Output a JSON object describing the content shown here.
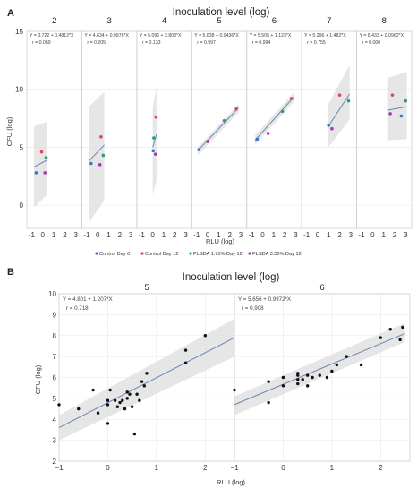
{
  "panelA": {
    "letter": "A",
    "title": "Inoculation level (log)",
    "xlabel": "RLU (log)",
    "ylabel": "CFU (log)"
  },
  "panelB": {
    "letter": "B",
    "title": "Inoculation level (log)",
    "xlabel": "RLU (log)",
    "ylabel": "CFU (log)"
  },
  "colors": {
    "Control Day 0": "#3b78c2",
    "Control Day 12": "#e0475a",
    "PLSDA 1.75% Day 12": "#2e9e6e",
    "PLSDA 3.50% Day 12": "#a23bb0",
    "fit": "#6a86b5",
    "band": "#dedede"
  },
  "chart_data": [
    {
      "type": "scatter",
      "title": "Inoculation level (log)",
      "xlabel": "RLU (log)",
      "ylabel": "CFU (log)",
      "xlim": [
        -1.2,
        3.3
      ],
      "ylim": [
        -2,
        15
      ],
      "y_ticks": [
        0,
        5,
        10,
        15
      ],
      "x_ticks": [
        -1,
        0,
        1,
        2,
        3
      ],
      "x_tick_labels": [
        "-1",
        "0",
        "1",
        "2",
        "3"
      ],
      "legend": [
        "Control Day 0",
        "Control Day 12",
        "PLSDA 1.75% Day 12",
        "PLSDA 3.50% Day 12"
      ],
      "legend_position": "bottom",
      "grid": true,
      "facets": [
        {
          "label": "2",
          "equation": "Y = 3.722 + 0.4812*X",
          "r": "r = 0.069",
          "fit": [
            [
              -0.8,
              3.3
            ],
            [
              0.4,
              3.9
            ]
          ],
          "band": [
            [
              -0.8,
              6.8,
              -0.2
            ],
            [
              0.4,
              7.2,
              0.9
            ]
          ],
          "points": [
            {
              "series": "Control Day 0",
              "x": -0.6,
              "y": 2.8
            },
            {
              "series": "Control Day 12",
              "x": -0.1,
              "y": 4.6
            },
            {
              "series": "PLSDA 1.75% Day 12",
              "x": 0.3,
              "y": 4.1
            },
            {
              "series": "PLSDA 3.50% Day 12",
              "x": 0.2,
              "y": 2.8
            }
          ]
        },
        {
          "label": "3",
          "equation": "Y = 4.634 + 0.9976*X",
          "r": "r = 0.205",
          "fit": [
            [
              -0.8,
              3.8
            ],
            [
              0.6,
              5.2
            ]
          ],
          "band": [
            [
              -0.8,
              8.5,
              -1.5
            ],
            [
              0.6,
              9.8,
              0.4
            ]
          ],
          "points": [
            {
              "series": "Control Day 0",
              "x": -0.6,
              "y": 3.6
            },
            {
              "series": "Control Day 12",
              "x": 0.3,
              "y": 5.9
            },
            {
              "series": "PLSDA 1.75% Day 12",
              "x": 0.5,
              "y": 4.3
            },
            {
              "series": "PLSDA 3.50% Day 12",
              "x": 0.2,
              "y": 3.5
            }
          ]
        },
        {
          "label": "4",
          "equation": "Y = 5.096 + 2.803*X",
          "r": "r = 0.133",
          "fit": [
            [
              0.0,
              5.0
            ],
            [
              0.35,
              6.1
            ]
          ],
          "band": [
            [
              0.0,
              8.4,
              0.9
            ],
            [
              0.35,
              10.2,
              2.1
            ]
          ],
          "points": [
            {
              "series": "Control Day 0",
              "x": 0.05,
              "y": 4.7
            },
            {
              "series": "Control Day 12",
              "x": 0.3,
              "y": 7.6
            },
            {
              "series": "PLSDA 1.75% Day 12",
              "x": 0.1,
              "y": 5.8
            },
            {
              "series": "PLSDA 3.50% Day 12",
              "x": 0.25,
              "y": 4.4
            }
          ]
        },
        {
          "label": "5",
          "equation": "Y = 5.638 + 0.9436*X",
          "r": "r = 0.997",
          "fit": [
            [
              -0.9,
              4.7
            ],
            [
              2.8,
              8.4
            ]
          ],
          "band": [
            [
              -0.9,
              5.0,
              4.3
            ],
            [
              2.8,
              8.7,
              8.0
            ]
          ],
          "points": [
            {
              "series": "Control Day 0",
              "x": -0.8,
              "y": 4.8
            },
            {
              "series": "PLSDA 3.50% Day 12",
              "x": 0.0,
              "y": 5.5
            },
            {
              "series": "PLSDA 1.75% Day 12",
              "x": 1.5,
              "y": 7.3
            },
            {
              "series": "Control Day 12",
              "x": 2.6,
              "y": 8.3
            }
          ]
        },
        {
          "label": "6",
          "equation": "Y = 5.505 + 1.123*X",
          "r": "r = 0.994",
          "fit": [
            [
              -0.7,
              5.6
            ],
            [
              2.8,
              9.3
            ]
          ],
          "band": [
            [
              -0.7,
              6.0,
              5.2
            ],
            [
              2.8,
              9.7,
              8.9
            ]
          ],
          "points": [
            {
              "series": "Control Day 0",
              "x": -0.5,
              "y": 5.7
            },
            {
              "series": "PLSDA 3.50% Day 12",
              "x": 0.5,
              "y": 6.2
            },
            {
              "series": "PLSDA 1.75% Day 12",
              "x": 1.8,
              "y": 8.1
            },
            {
              "series": "Control Day 12",
              "x": 2.6,
              "y": 9.2
            }
          ]
        },
        {
          "label": "7",
          "equation": "Y = 5.296 + 1.482*X",
          "r": "r = 0.755",
          "fit": [
            [
              0.9,
              6.7
            ],
            [
              2.9,
              9.6
            ]
          ],
          "band": [
            [
              0.9,
              8.6,
              4.9
            ],
            [
              2.9,
              12.1,
              7.4
            ]
          ],
          "points": [
            {
              "series": "Control Day 0",
              "x": 1.0,
              "y": 6.9
            },
            {
              "series": "PLSDA 3.50% Day 12",
              "x": 1.3,
              "y": 6.6
            },
            {
              "series": "Control Day 12",
              "x": 2.0,
              "y": 9.5
            },
            {
              "series": "PLSDA 1.75% Day 12",
              "x": 2.8,
              "y": 9.0
            }
          ]
        },
        {
          "label": "8",
          "equation": "Y = 8.433 + 0.0962*X",
          "r": "r = 0.000",
          "fit": [
            [
              1.4,
              8.2
            ],
            [
              3.1,
              8.5
            ]
          ],
          "band": [
            [
              1.4,
              11.0,
              5.6
            ],
            [
              3.1,
              11.5,
              5.7
            ]
          ],
          "points": [
            {
              "series": "Control Day 0",
              "x": 2.6,
              "y": 7.7
            },
            {
              "series": "Control Day 12",
              "x": 1.8,
              "y": 9.5
            },
            {
              "series": "PLSDA 1.75% Day 12",
              "x": 3.0,
              "y": 9.0
            },
            {
              "series": "PLSDA 3.50% Day 12",
              "x": 1.6,
              "y": 7.9
            }
          ]
        }
      ]
    },
    {
      "type": "scatter",
      "title": "Inoculation level (log)",
      "xlabel": "RLU (log)",
      "ylabel": "CFU (log)",
      "xlim": [
        -1,
        2.6
      ],
      "ylim": [
        2,
        10
      ],
      "y_ticks": [
        2,
        3,
        4,
        5,
        6,
        7,
        8,
        9,
        10
      ],
      "x_ticks": [
        -1,
        0,
        1,
        2
      ],
      "grid": true,
      "facets": [
        {
          "label": "5",
          "equation": "Y = 4.801 + 1.207*X",
          "r": "r = 0.718",
          "fit": [
            [
              -1.0,
              3.6
            ],
            [
              2.6,
              7.9
            ]
          ],
          "band": [
            [
              -1.0,
              4.2,
              3.0
            ],
            [
              2.6,
              8.8,
              7.0
            ]
          ],
          "points": [
            [
              -1.0,
              4.7
            ],
            [
              -0.6,
              4.5
            ],
            [
              -0.3,
              5.4
            ],
            [
              -0.2,
              4.3
            ],
            [
              0.0,
              4.9
            ],
            [
              0.0,
              4.7
            ],
            [
              0.0,
              3.8
            ],
            [
              0.05,
              5.4
            ],
            [
              0.15,
              4.9
            ],
            [
              0.2,
              4.6
            ],
            [
              0.25,
              4.8
            ],
            [
              0.3,
              4.9
            ],
            [
              0.35,
              4.5
            ],
            [
              0.4,
              5.0
            ],
            [
              0.4,
              5.3
            ],
            [
              0.45,
              5.2
            ],
            [
              0.5,
              4.6
            ],
            [
              0.55,
              3.3
            ],
            [
              0.6,
              5.2
            ],
            [
              0.65,
              4.9
            ],
            [
              0.7,
              5.8
            ],
            [
              0.75,
              5.6
            ],
            [
              0.8,
              6.2
            ],
            [
              1.6,
              7.3
            ],
            [
              1.6,
              6.7
            ],
            [
              2.0,
              8.0
            ]
          ]
        },
        {
          "label": "6",
          "equation": "Y = 5.656 + 0.9972*X",
          "r": "r = 0.908",
          "fit": [
            [
              -1.0,
              4.7
            ],
            [
              2.5,
              8.1
            ]
          ],
          "band": [
            [
              -1.0,
              5.1,
              4.2
            ],
            [
              2.5,
              8.6,
              7.7
            ]
          ],
          "points": [
            [
              -1.0,
              5.4
            ],
            [
              -0.3,
              4.8
            ],
            [
              -0.3,
              5.8
            ],
            [
              0.0,
              5.6
            ],
            [
              0.0,
              6.0
            ],
            [
              0.3,
              5.7
            ],
            [
              0.3,
              5.9
            ],
            [
              0.3,
              6.1
            ],
            [
              0.3,
              6.2
            ],
            [
              0.4,
              5.9
            ],
            [
              0.5,
              5.6
            ],
            [
              0.5,
              6.1
            ],
            [
              0.6,
              6.0
            ],
            [
              0.75,
              6.1
            ],
            [
              0.9,
              6.0
            ],
            [
              1.0,
              6.3
            ],
            [
              1.1,
              6.6
            ],
            [
              1.3,
              7.0
            ],
            [
              1.6,
              6.6
            ],
            [
              2.0,
              7.9
            ],
            [
              2.2,
              8.3
            ],
            [
              2.4,
              7.8
            ],
            [
              2.45,
              8.4
            ]
          ]
        }
      ]
    }
  ]
}
